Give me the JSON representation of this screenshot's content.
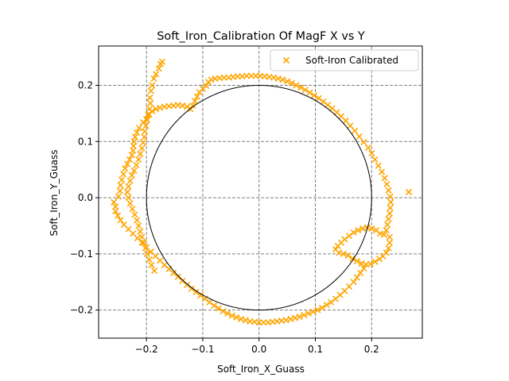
{
  "chart_data": {
    "type": "scatter",
    "title": "Soft_Iron_Calibration Of MagF X vs Y",
    "xlabel": "Soft_Iron_X_Guass",
    "ylabel": "Soft_Iron_Y_Guass",
    "xlim": [
      -0.285,
      0.29
    ],
    "ylim": [
      -0.25,
      0.27
    ],
    "xticks": [
      -0.2,
      -0.1,
      0.0,
      0.1,
      0.2
    ],
    "xtick_labels": [
      "−0.2",
      "−0.1",
      "0.0",
      "0.1",
      "0.2"
    ],
    "yticks": [
      -0.2,
      -0.1,
      0.0,
      0.1,
      0.2
    ],
    "ytick_labels": [
      "−0.2",
      "−0.1",
      "0.0",
      "0.1",
      "0.2"
    ],
    "grid": true,
    "grid_style": "dashed",
    "legend_position": "top-right",
    "series": [
      {
        "name": "Soft-Iron Calibrated",
        "marker": "x",
        "color": "#FFA500",
        "points": [
          [
            -0.175,
            0.238
          ],
          [
            -0.172,
            0.242
          ],
          [
            -0.178,
            0.23
          ],
          [
            -0.183,
            0.22
          ],
          [
            -0.187,
            0.212
          ],
          [
            -0.19,
            0.2
          ],
          [
            -0.192,
            0.19
          ],
          [
            -0.194,
            0.178
          ],
          [
            -0.193,
            0.168
          ],
          [
            -0.195,
            0.158
          ],
          [
            -0.197,
            0.148
          ],
          [
            -0.199,
            0.138
          ],
          [
            -0.201,
            0.128
          ],
          [
            -0.203,
            0.118
          ],
          [
            -0.204,
            0.108
          ],
          [
            -0.206,
            0.098
          ],
          [
            -0.208,
            0.088
          ],
          [
            -0.211,
            0.078
          ],
          [
            -0.214,
            0.068
          ],
          [
            -0.218,
            0.058
          ],
          [
            -0.222,
            0.048
          ],
          [
            -0.226,
            0.04
          ],
          [
            -0.229,
            0.03
          ],
          [
            -0.232,
            0.02
          ],
          [
            -0.234,
            0.01
          ],
          [
            -0.232,
            0.0
          ],
          [
            -0.229,
            -0.01
          ],
          [
            -0.225,
            -0.02
          ],
          [
            -0.221,
            -0.03
          ],
          [
            -0.217,
            -0.04
          ],
          [
            -0.214,
            -0.05
          ],
          [
            -0.211,
            -0.06
          ],
          [
            -0.208,
            -0.07
          ],
          [
            -0.205,
            -0.08
          ],
          [
            -0.202,
            -0.09
          ],
          [
            -0.199,
            -0.1
          ],
          [
            -0.195,
            -0.11
          ],
          [
            -0.191,
            -0.12
          ],
          [
            -0.186,
            -0.13
          ],
          [
            -0.258,
            -0.008
          ],
          [
            -0.255,
            -0.016
          ],
          [
            -0.25,
            0.002
          ],
          [
            -0.247,
            0.012
          ],
          [
            -0.246,
            0.022
          ],
          [
            -0.244,
            0.032
          ],
          [
            -0.241,
            0.042
          ],
          [
            -0.238,
            0.052
          ],
          [
            -0.234,
            0.06
          ],
          [
            -0.23,
            0.068
          ],
          [
            -0.226,
            0.076
          ],
          [
            -0.224,
            0.084
          ],
          [
            -0.223,
            0.092
          ],
          [
            -0.222,
            0.1
          ],
          [
            -0.22,
            0.108
          ],
          [
            -0.217,
            0.116
          ],
          [
            -0.213,
            0.124
          ],
          [
            -0.206,
            0.134
          ],
          [
            -0.2,
            0.14
          ],
          [
            -0.195,
            0.148
          ],
          [
            -0.19,
            0.154
          ],
          [
            -0.183,
            0.158
          ],
          [
            -0.176,
            0.16
          ],
          [
            -0.168,
            0.162
          ],
          [
            -0.16,
            0.163
          ],
          [
            -0.152,
            0.164
          ],
          [
            -0.144,
            0.165
          ],
          [
            -0.136,
            0.164
          ],
          [
            -0.128,
            0.162
          ],
          [
            -0.122,
            0.158
          ],
          [
            -0.118,
            0.164
          ],
          [
            -0.114,
            0.172
          ],
          [
            -0.11,
            0.18
          ],
          [
            -0.106,
            0.188
          ],
          [
            -0.1,
            0.194
          ],
          [
            -0.094,
            0.199
          ],
          [
            -0.09,
            0.206
          ],
          [
            -0.085,
            0.21
          ],
          [
            -0.078,
            0.212
          ],
          [
            -0.07,
            0.213
          ],
          [
            -0.062,
            0.214
          ],
          [
            -0.054,
            0.214
          ],
          [
            -0.046,
            0.215
          ],
          [
            -0.038,
            0.216
          ],
          [
            -0.03,
            0.216
          ],
          [
            -0.022,
            0.217
          ],
          [
            -0.014,
            0.217
          ],
          [
            -0.006,
            0.217
          ],
          [
            0.002,
            0.217
          ],
          [
            0.01,
            0.216
          ],
          [
            0.018,
            0.215
          ],
          [
            0.026,
            0.214
          ],
          [
            0.034,
            0.212
          ],
          [
            0.042,
            0.21
          ],
          [
            0.05,
            0.207
          ],
          [
            0.058,
            0.204
          ],
          [
            0.066,
            0.2
          ],
          [
            0.074,
            0.196
          ],
          [
            0.082,
            0.192
          ],
          [
            0.09,
            0.187
          ],
          [
            0.098,
            0.182
          ],
          [
            0.106,
            0.177
          ],
          [
            0.114,
            0.171
          ],
          [
            0.122,
            0.165
          ],
          [
            0.13,
            0.159
          ],
          [
            0.138,
            0.152
          ],
          [
            0.146,
            0.145
          ],
          [
            0.154,
            0.137
          ],
          [
            0.162,
            0.128
          ],
          [
            0.17,
            0.119
          ],
          [
            0.178,
            0.109
          ],
          [
            0.186,
            0.099
          ],
          [
            0.194,
            0.089
          ],
          [
            0.2,
            0.079
          ],
          [
            0.206,
            0.068
          ],
          [
            0.212,
            0.057
          ],
          [
            0.218,
            0.046
          ],
          [
            0.223,
            0.035
          ],
          [
            0.227,
            0.024
          ],
          [
            0.23,
            0.013
          ],
          [
            0.233,
            0.002
          ],
          [
            0.234,
            -0.008
          ],
          [
            0.233,
            -0.018
          ],
          [
            0.232,
            -0.028
          ],
          [
            0.23,
            -0.038
          ],
          [
            0.228,
            -0.048
          ],
          [
            0.226,
            -0.058
          ],
          [
            0.222,
            -0.066
          ],
          [
            0.215,
            -0.064
          ],
          [
            0.208,
            -0.058
          ],
          [
            0.2,
            -0.055
          ],
          [
            0.192,
            -0.053
          ],
          [
            0.184,
            -0.055
          ],
          [
            0.176,
            -0.058
          ],
          [
            0.168,
            -0.062
          ],
          [
            0.16,
            -0.068
          ],
          [
            0.152,
            -0.074
          ],
          [
            0.146,
            -0.08
          ],
          [
            0.14,
            -0.086
          ],
          [
            0.136,
            -0.092
          ],
          [
            0.142,
            -0.098
          ],
          [
            0.15,
            -0.1
          ],
          [
            0.158,
            -0.103
          ],
          [
            0.166,
            -0.108
          ],
          [
            0.174,
            -0.113
          ],
          [
            0.182,
            -0.117
          ],
          [
            0.19,
            -0.119
          ],
          [
            0.198,
            -0.118
          ],
          [
            0.206,
            -0.114
          ],
          [
            0.214,
            -0.109
          ],
          [
            0.22,
            -0.104
          ],
          [
            0.226,
            -0.098
          ],
          [
            0.23,
            -0.09
          ],
          [
            0.232,
            -0.08
          ],
          [
            0.232,
            -0.07
          ],
          [
            0.186,
            -0.126
          ],
          [
            0.18,
            -0.134
          ],
          [
            0.174,
            -0.142
          ],
          [
            0.168,
            -0.15
          ],
          [
            0.16,
            -0.158
          ],
          [
            0.152,
            -0.166
          ],
          [
            0.144,
            -0.173
          ],
          [
            0.136,
            -0.18
          ],
          [
            0.128,
            -0.186
          ],
          [
            0.12,
            -0.191
          ],
          [
            0.112,
            -0.196
          ],
          [
            0.104,
            -0.2
          ],
          [
            0.096,
            -0.203
          ],
          [
            0.088,
            -0.206
          ],
          [
            0.08,
            -0.209
          ],
          [
            0.072,
            -0.212
          ],
          [
            0.064,
            -0.214
          ],
          [
            0.056,
            -0.216
          ],
          [
            0.048,
            -0.218
          ],
          [
            0.04,
            -0.219
          ],
          [
            0.032,
            -0.22
          ],
          [
            0.024,
            -0.221
          ],
          [
            0.016,
            -0.222
          ],
          [
            0.008,
            -0.222
          ],
          [
            0.0,
            -0.222
          ],
          [
            -0.008,
            -0.221
          ],
          [
            -0.016,
            -0.22
          ],
          [
            -0.024,
            -0.218
          ],
          [
            -0.032,
            -0.216
          ],
          [
            -0.04,
            -0.213
          ],
          [
            -0.048,
            -0.21
          ],
          [
            -0.056,
            -0.206
          ],
          [
            -0.064,
            -0.202
          ],
          [
            -0.072,
            -0.197
          ],
          [
            -0.08,
            -0.192
          ],
          [
            -0.088,
            -0.186
          ],
          [
            -0.096,
            -0.18
          ],
          [
            -0.104,
            -0.174
          ],
          [
            -0.112,
            -0.168
          ],
          [
            -0.12,
            -0.162
          ],
          [
            -0.128,
            -0.155
          ],
          [
            -0.136,
            -0.148
          ],
          [
            -0.144,
            -0.141
          ],
          [
            -0.152,
            -0.134
          ],
          [
            -0.16,
            -0.127
          ],
          [
            -0.168,
            -0.12
          ],
          [
            -0.176,
            -0.112
          ],
          [
            -0.184,
            -0.104
          ],
          [
            -0.192,
            -0.096
          ],
          [
            -0.2,
            -0.088
          ],
          [
            -0.208,
            -0.08
          ],
          [
            -0.216,
            -0.072
          ],
          [
            -0.224,
            -0.064
          ],
          [
            -0.232,
            -0.056
          ],
          [
            -0.24,
            -0.048
          ],
          [
            -0.246,
            -0.04
          ],
          [
            -0.251,
            -0.032
          ],
          [
            -0.255,
            -0.024
          ],
          [
            0.266,
            0.01
          ]
        ]
      },
      {
        "name": "",
        "type": "line",
        "color": "#000000",
        "shape": "circle",
        "center": [
          0,
          0
        ],
        "radius": 0.2
      }
    ]
  }
}
